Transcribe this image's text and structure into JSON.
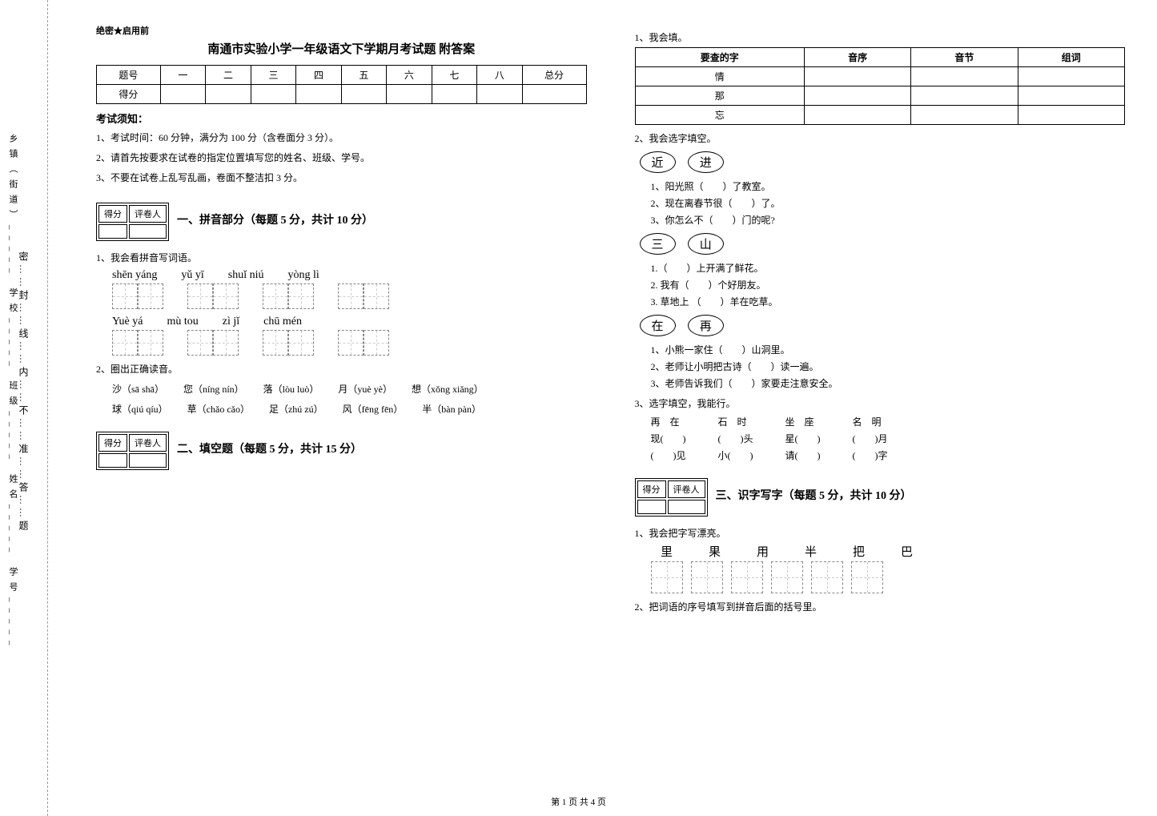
{
  "binding": {
    "labels": "乡镇（街道）_____ 学校_____ 班级_____ 姓名_____ 学号_____",
    "instruction": "密……封……线……内……不……准……答……题"
  },
  "secret": "绝密★启用前",
  "title": "南通市实验小学一年级语文下学期月考试题 附答案",
  "score_table": {
    "head": [
      "题号",
      "一",
      "二",
      "三",
      "四",
      "五",
      "六",
      "七",
      "八",
      "总分"
    ],
    "row": "得分"
  },
  "notice_head": "考试须知：",
  "notices": [
    "1、考试时间：60 分钟，满分为 100 分（含卷面分 3 分）。",
    "2、请首先按要求在试卷的指定位置填写您的姓名、班级、学号。",
    "3、不要在试卷上乱写乱画，卷面不整洁扣 3 分。"
  ],
  "scorebox": {
    "c1": "得分",
    "c2": "评卷人"
  },
  "sections": {
    "s1": "一、拼音部分（每题 5 分，共计 10 分）",
    "s2": "二、填空题（每题 5 分，共计 15 分）",
    "s3": "三、识字写字（每题 5 分，共计 10 分）"
  },
  "q1_1": "1、我会看拼音写词语。",
  "pinyin1": [
    "shēn  yáng",
    "yǔ   yī",
    "shuǐ  niú",
    "yòng   lì"
  ],
  "pinyin2": [
    "Yuè  yá",
    "mù    tou",
    "zì  jǐ",
    "chū  mén"
  ],
  "q1_2": "2、圈出正确读音。",
  "circle1": [
    "沙（sā shā）",
    "您（níng nín）",
    "落（lòu luò）",
    "月（yuè yè）",
    "想（xǒng   xiǎng）"
  ],
  "circle2": [
    "球（qiú qíu）",
    "草（chǎo cǎo）",
    "足（zhú zú）",
    "风（fēng fēn）",
    "半（bàn  pàn）"
  ],
  "q2_1": "1、我会填。",
  "dict_head": [
    "要查的字",
    "音序",
    "音节",
    "组词"
  ],
  "dict_rows": [
    "情",
    "那",
    "忘"
  ],
  "q2_2": "2、我会选字填空。",
  "pair1": {
    "a": "近",
    "b": "进"
  },
  "pair1_items": [
    "1、阳光照（　　）了教室。",
    "2、现在离春节很（　　）了。",
    "3、你怎么不（　　）门的呢?"
  ],
  "pair2": {
    "a": "三",
    "b": "山"
  },
  "pair2_items": [
    "1.（　　）上开满了鲜花。",
    "2. 我有（　　）个好朋友。",
    "3. 草地上 （　　）羊在吃草。"
  ],
  "pair3": {
    "a": "在",
    "b": "再"
  },
  "pair3_items": [
    "1、小熊一家住（　　）山洞里。",
    "2、老师让小明把古诗（　　）读一遍。",
    "3、老师告诉我们（　　）家要走注意安全。"
  ],
  "q2_3": "3、选字填空，我能行。",
  "fill_cols": [
    [
      "再　在",
      "现(　　)",
      "(　　)见"
    ],
    [
      "石　时",
      "(　　)头",
      "小(　　)"
    ],
    [
      "坐　座",
      "星(　　)",
      "请(　　)"
    ],
    [
      "名　明",
      "(　　)月",
      "(　　)字"
    ]
  ],
  "q3_1": "1、我会把字写漂亮。",
  "hw_chars": [
    "里",
    "果",
    "用",
    "半",
    "把",
    "巴"
  ],
  "q3_2": "2、把词语的序号填写到拼音后面的括号里。",
  "footer": "第 1 页 共 4 页"
}
